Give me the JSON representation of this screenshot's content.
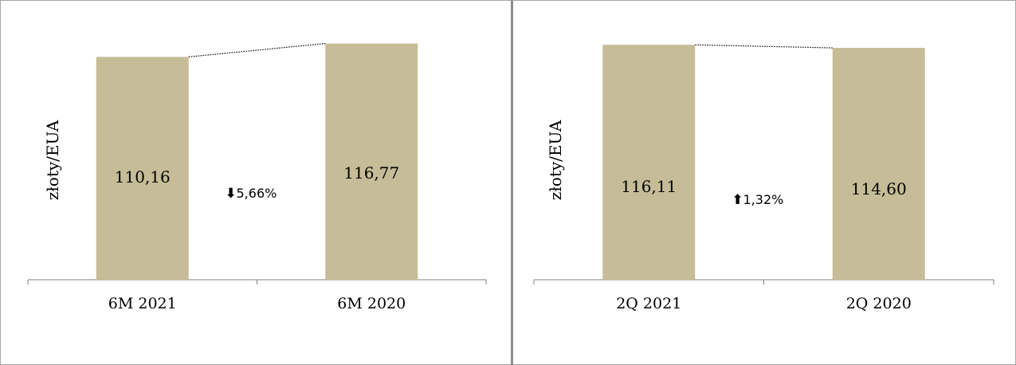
{
  "colors": {
    "bar": "#c6bd98",
    "axis": "#808080"
  },
  "chart_data": [
    {
      "type": "bar",
      "ylabel": "złoty/EUA",
      "categories": [
        "6M 2021",
        "6M 2020"
      ],
      "values": [
        110.16,
        116.77
      ],
      "value_labels": [
        "110,16",
        "116,77"
      ],
      "change": {
        "direction": "down",
        "arrow": "⬇",
        "text": "5,66%"
      },
      "ylim": [
        0,
        130
      ],
      "grid": false,
      "legend": "none"
    },
    {
      "type": "bar",
      "ylabel": "złoty/EUA",
      "categories": [
        "2Q 2021",
        "2Q 2020"
      ],
      "values": [
        116.11,
        114.6
      ],
      "value_labels": [
        "116,11",
        "114,60"
      ],
      "change": {
        "direction": "up",
        "arrow": "⬆",
        "text": "1,32%"
      },
      "ylim": [
        0,
        130
      ],
      "grid": false,
      "legend": "none"
    }
  ]
}
